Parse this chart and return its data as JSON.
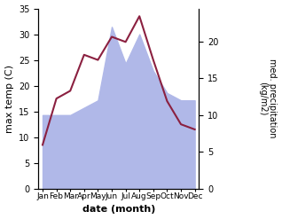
{
  "months": [
    "Jan",
    "Feb",
    "Mar",
    "Apr",
    "May",
    "Jun",
    "Jul",
    "Aug",
    "Sep",
    "Oct",
    "Nov",
    "Dec"
  ],
  "month_positions": [
    0,
    1,
    2,
    3,
    4,
    5,
    6,
    7,
    8,
    9,
    10,
    11
  ],
  "precipitation": [
    10,
    10,
    10,
    11,
    12,
    22,
    17,
    21,
    16,
    13,
    12,
    12
  ],
  "temperature": [
    8.5,
    17.5,
    19,
    26,
    25,
    29.5,
    28.5,
    33.5,
    25,
    17,
    12.5,
    11.5
  ],
  "precip_color": "#b0b8e8",
  "temp_color": "#8b2040",
  "left_ylabel": "max temp (C)",
  "right_ylabel": "med. precipitation\n(kg/m2)",
  "xlabel": "date (month)",
  "left_ylim": [
    0,
    35
  ],
  "left_yticks": [
    0,
    5,
    10,
    15,
    20,
    25,
    30,
    35
  ],
  "right_ylim": [
    0,
    24.5
  ],
  "right_yticks": [
    0,
    5,
    10,
    15,
    20
  ],
  "figsize": [
    3.18,
    2.47
  ],
  "dpi": 100
}
